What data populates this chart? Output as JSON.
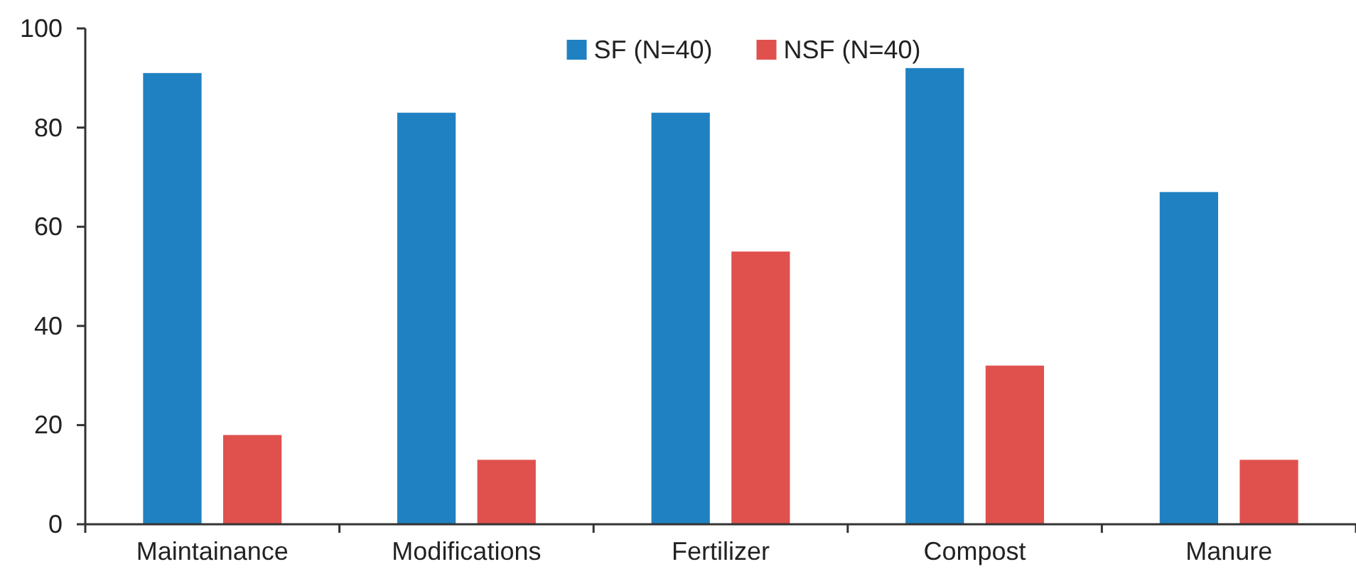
{
  "chart_data": {
    "type": "bar",
    "categories": [
      "Maintainance",
      "Modifications",
      "Fertilizer",
      "Compost",
      "Manure"
    ],
    "series": [
      {
        "name": "SF (N=40)",
        "color": "#1f81c1",
        "values": [
          91,
          83,
          83,
          92,
          67
        ]
      },
      {
        "name": "NSF (N=40)",
        "color": "#e0514e",
        "values": [
          18,
          13,
          55,
          32,
          13
        ]
      }
    ],
    "ylim": [
      0,
      100
    ],
    "yticks": [
      0,
      20,
      40,
      60,
      80,
      100
    ],
    "grid": false,
    "legend": "top"
  }
}
